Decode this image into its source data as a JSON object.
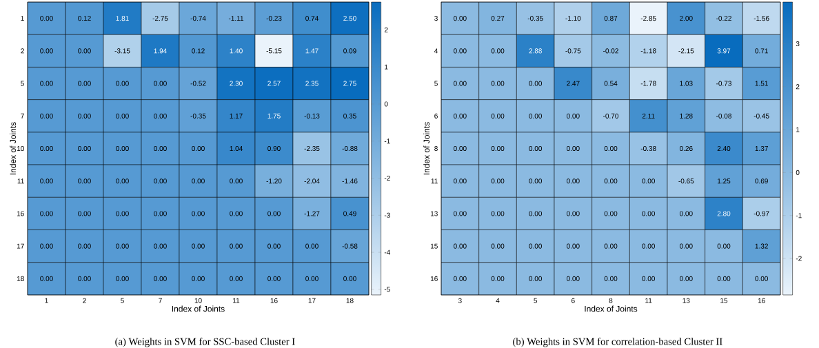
{
  "chart_data": [
    {
      "type": "heatmap",
      "xlabel": "Index of Joints",
      "ylabel": "Index of Joints",
      "annotations": [
        "(a)  Weights in SVM for SSC-based Cluster I"
      ],
      "categories": [
        "1",
        "2",
        "5",
        "7",
        "10",
        "11",
        "16",
        "17",
        "18"
      ],
      "y_categories": [
        "1",
        "2",
        "5",
        "7",
        "10",
        "11",
        "16",
        "17",
        "18"
      ],
      "cells": [
        [
          0.0,
          0.12,
          1.81,
          -2.75,
          -0.74,
          -1.11,
          -0.23,
          0.74,
          2.5
        ],
        [
          0.0,
          0.0,
          -3.15,
          1.94,
          0.12,
          1.4,
          -5.15,
          1.47,
          0.09
        ],
        [
          0.0,
          0.0,
          0.0,
          0.0,
          -0.52,
          2.3,
          2.57,
          2.35,
          2.75
        ],
        [
          0.0,
          0.0,
          0.0,
          0.0,
          -0.35,
          1.17,
          1.75,
          -0.13,
          0.35
        ],
        [
          0.0,
          0.0,
          0.0,
          0.0,
          0.0,
          1.04,
          0.9,
          -2.35,
          -0.88
        ],
        [
          0.0,
          0.0,
          0.0,
          0.0,
          0.0,
          0.0,
          -1.2,
          -2.04,
          -1.46
        ],
        [
          0.0,
          0.0,
          0.0,
          0.0,
          0.0,
          0.0,
          0.0,
          -1.27,
          0.49
        ],
        [
          0.0,
          0.0,
          0.0,
          0.0,
          0.0,
          0.0,
          0.0,
          0.0,
          -0.58
        ],
        [
          0.0,
          0.0,
          0.0,
          0.0,
          0.0,
          0.0,
          0.0,
          0.0,
          0.0
        ]
      ],
      "cell_labels": [
        [
          "0.00",
          "0.12",
          "1.81",
          "-2.75",
          "-0.74",
          "-1.11",
          "-0.23",
          "0.74",
          "2.50"
        ],
        [
          "0.00",
          "0.00",
          "-3.15",
          "1.94",
          "0.12",
          "1.40",
          "-5.15",
          "1.47",
          "0.09"
        ],
        [
          "0.00",
          "0.00",
          "0.00",
          "0.00",
          "-0.52",
          "2.30",
          "2.57",
          "2.35",
          "2.75"
        ],
        [
          "0.00",
          "0.00",
          "0.00",
          "0.00",
          "-0.35",
          "1.17",
          "1.75",
          "-0.13",
          "0.35"
        ],
        [
          "0.00",
          "0.00",
          "0.00",
          "0.00",
          "0.00",
          "1.04",
          "0.90",
          "-2.35",
          "-0.88"
        ],
        [
          "0.00",
          "0.00",
          "0.00",
          "0.00",
          "0.00",
          "0.00",
          "-1.20",
          "-2.04",
          "-1.46"
        ],
        [
          "0.00",
          "0.00",
          "0.00",
          "0.00",
          "0.00",
          "0.00",
          "0.00",
          "-1.27",
          "0.49"
        ],
        [
          "0.00",
          "0.00",
          "0.00",
          "0.00",
          "0.00",
          "0.00",
          "0.00",
          "0.00",
          "-0.58"
        ],
        [
          "0.00",
          "0.00",
          "0.00",
          "0.00",
          "0.00",
          "0.00",
          "0.00",
          "0.00",
          "0.00"
        ]
      ],
      "clim": [
        -5.15,
        2.75
      ],
      "cticks": [
        -5,
        -4,
        -3,
        -2,
        -1,
        0,
        1,
        2
      ]
    },
    {
      "type": "heatmap",
      "xlabel": "Index of Joints",
      "ylabel": "Index of Joints",
      "annotations": [
        "(b)  Weights in SVM for correlation-based Cluster II"
      ],
      "categories": [
        "3",
        "4",
        "5",
        "6",
        "8",
        "11",
        "13",
        "15",
        "16"
      ],
      "y_categories": [
        "3",
        "4",
        "5",
        "6",
        "8",
        "11",
        "13",
        "15",
        "16"
      ],
      "cells": [
        [
          0.0,
          0.27,
          -0.35,
          -1.1,
          0.87,
          -2.85,
          2.0,
          -0.22,
          -1.56
        ],
        [
          0.0,
          0.0,
          2.88,
          -0.75,
          -0.02,
          -1.18,
          -2.15,
          3.97,
          0.71
        ],
        [
          0.0,
          0.0,
          0.0,
          2.47,
          0.54,
          -1.78,
          1.03,
          -0.73,
          1.51
        ],
        [
          0.0,
          0.0,
          0.0,
          0.0,
          -0.7,
          2.11,
          1.28,
          -0.08,
          -0.45
        ],
        [
          0.0,
          0.0,
          0.0,
          0.0,
          0.0,
          -0.38,
          0.26,
          2.4,
          1.37
        ],
        [
          0.0,
          0.0,
          0.0,
          0.0,
          0.0,
          0.0,
          -0.65,
          1.25,
          0.69
        ],
        [
          0.0,
          0.0,
          0.0,
          0.0,
          0.0,
          0.0,
          0.0,
          2.8,
          -0.97
        ],
        [
          0.0,
          0.0,
          0.0,
          0.0,
          0.0,
          0.0,
          0.0,
          0.0,
          1.32
        ],
        [
          0.0,
          0.0,
          0.0,
          0.0,
          0.0,
          0.0,
          0.0,
          0.0,
          0.0
        ]
      ],
      "cell_labels": [
        [
          "0.00",
          "0.27",
          "-0.35",
          "-1.10",
          "0.87",
          "-2.85",
          "2.00",
          "-0.22",
          "-1.56"
        ],
        [
          "0.00",
          "0.00",
          "2.88",
          "-0.75",
          "-0.02",
          "-1.18",
          "-2.15",
          "3.97",
          "0.71"
        ],
        [
          "0.00",
          "0.00",
          "0.00",
          "2.47",
          "0.54",
          "-1.78",
          "1.03",
          "-0.73",
          "1.51"
        ],
        [
          "0.00",
          "0.00",
          "0.00",
          "0.00",
          "-0.70",
          "2.11",
          "1.28",
          "-0.08",
          "-0.45"
        ],
        [
          "0.00",
          "0.00",
          "0.00",
          "0.00",
          "0.00",
          "-0.38",
          "0.26",
          "2.40",
          "1.37"
        ],
        [
          "0.00",
          "0.00",
          "0.00",
          "0.00",
          "0.00",
          "0.00",
          "-0.65",
          "1.25",
          "0.69"
        ],
        [
          "0.00",
          "0.00",
          "0.00",
          "0.00",
          "0.00",
          "0.00",
          "0.00",
          "2.80",
          "-0.97"
        ],
        [
          "0.00",
          "0.00",
          "0.00",
          "0.00",
          "0.00",
          "0.00",
          "0.00",
          "0.00",
          "1.32"
        ],
        [
          "0.00",
          "0.00",
          "0.00",
          "0.00",
          "0.00",
          "0.00",
          "0.00",
          "0.00",
          "0.00"
        ]
      ],
      "clim": [
        -2.85,
        3.97
      ],
      "cticks": [
        -2,
        -1,
        0,
        1,
        2,
        3
      ]
    }
  ]
}
